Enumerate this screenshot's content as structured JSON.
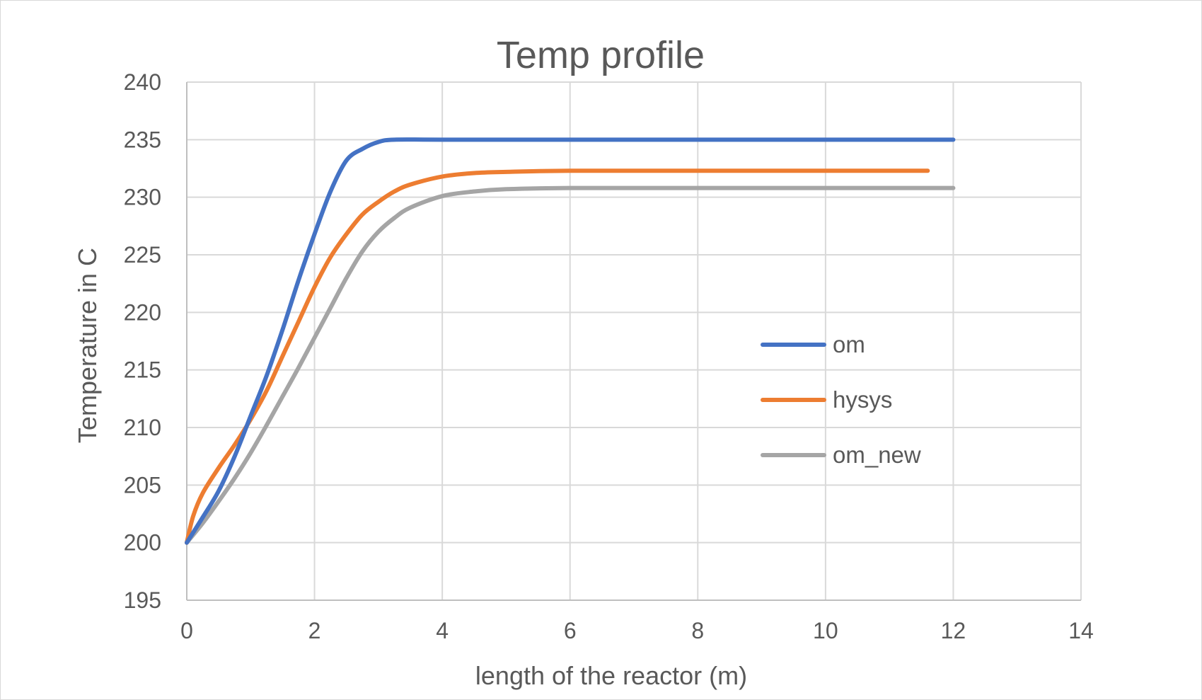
{
  "chart_data": {
    "type": "line",
    "title": "Temp profile",
    "xlabel": "length of the reactor (m)",
    "ylabel": "Temperature in C",
    "xlim": [
      0,
      14
    ],
    "ylim": [
      195,
      240
    ],
    "xticks": [
      "0",
      "2",
      "4",
      "6",
      "8",
      "10",
      "12",
      "14"
    ],
    "yticks": [
      "195",
      "200",
      "205",
      "210",
      "215",
      "220",
      "225",
      "230",
      "235",
      "240"
    ],
    "grid": true,
    "legend_position": "right-center",
    "series": [
      {
        "name": "om",
        "color": "#4472c4",
        "points": [
          [
            0,
            200
          ],
          [
            0.25,
            202.2
          ],
          [
            0.5,
            204.5
          ],
          [
            0.75,
            207.5
          ],
          [
            1.0,
            211
          ],
          [
            1.25,
            214.5
          ],
          [
            1.5,
            218.5
          ],
          [
            1.75,
            222.8
          ],
          [
            2.0,
            226.8
          ],
          [
            2.25,
            230.5
          ],
          [
            2.5,
            233.2
          ],
          [
            2.75,
            234.2
          ],
          [
            3.0,
            234.8
          ],
          [
            3.25,
            235
          ],
          [
            4,
            235
          ],
          [
            6,
            235
          ],
          [
            8,
            235
          ],
          [
            10,
            235
          ],
          [
            12,
            235
          ]
        ]
      },
      {
        "name": "hysys",
        "color": "#ed7d31",
        "points": [
          [
            0,
            200
          ],
          [
            0.1,
            202.3
          ],
          [
            0.25,
            204.3
          ],
          [
            0.5,
            206.5
          ],
          [
            0.75,
            208.5
          ],
          [
            1.0,
            210.7
          ],
          [
            1.25,
            213.2
          ],
          [
            1.5,
            216.2
          ],
          [
            1.75,
            219.2
          ],
          [
            2.0,
            222.2
          ],
          [
            2.25,
            224.8
          ],
          [
            2.5,
            226.8
          ],
          [
            2.75,
            228.5
          ],
          [
            3.0,
            229.6
          ],
          [
            3.25,
            230.5
          ],
          [
            3.5,
            231.1
          ],
          [
            4.0,
            231.8
          ],
          [
            4.5,
            232.1
          ],
          [
            5.0,
            232.2
          ],
          [
            6,
            232.3
          ],
          [
            8,
            232.3
          ],
          [
            10,
            232.3
          ],
          [
            11.6,
            232.3
          ]
        ]
      },
      {
        "name": "om_new",
        "color": "#a5a5a5",
        "points": [
          [
            0,
            200
          ],
          [
            0.25,
            201.7
          ],
          [
            0.5,
            203.6
          ],
          [
            0.75,
            205.6
          ],
          [
            1.0,
            207.8
          ],
          [
            1.25,
            210.2
          ],
          [
            1.5,
            212.7
          ],
          [
            1.75,
            215.2
          ],
          [
            2.0,
            217.8
          ],
          [
            2.25,
            220.4
          ],
          [
            2.5,
            223
          ],
          [
            2.75,
            225.3
          ],
          [
            3.0,
            227
          ],
          [
            3.25,
            228.2
          ],
          [
            3.5,
            229.1
          ],
          [
            4.0,
            230.1
          ],
          [
            4.5,
            230.5
          ],
          [
            5.0,
            230.7
          ],
          [
            6,
            230.8
          ],
          [
            8,
            230.8
          ],
          [
            10,
            230.8
          ],
          [
            12,
            230.8
          ]
        ]
      }
    ]
  }
}
